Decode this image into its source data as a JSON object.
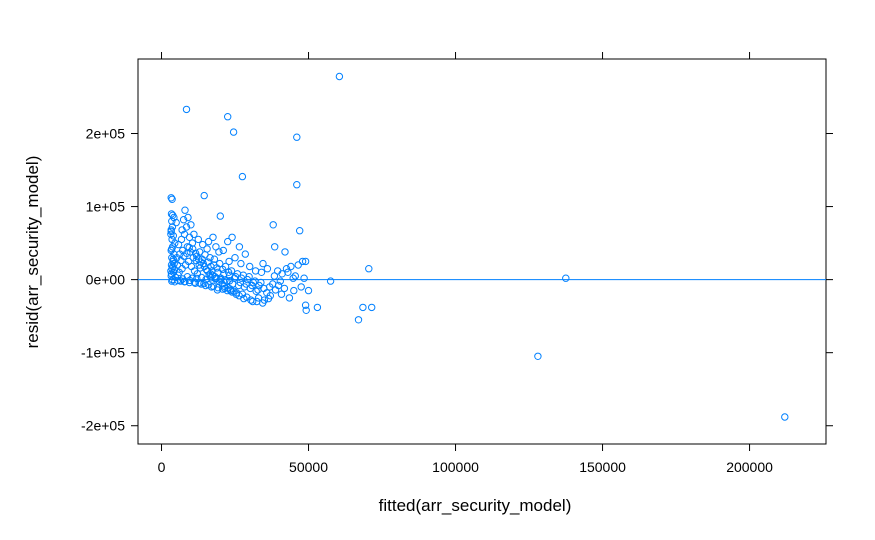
{
  "chart_data": {
    "type": "scatter",
    "title": "",
    "xlabel": "fitted(arr_security_model)",
    "ylabel": "resid(arr_security_model)",
    "xlim": [
      -8000,
      226000
    ],
    "ylim": [
      -225000,
      302000
    ],
    "x_ticks": [
      {
        "value": 0,
        "label": "0"
      },
      {
        "value": 50000,
        "label": "50000"
      },
      {
        "value": 100000,
        "label": "100000"
      },
      {
        "value": 150000,
        "label": "150000"
      },
      {
        "value": 200000,
        "label": "200000"
      }
    ],
    "y_ticks": [
      {
        "value": -200000,
        "label": "-2e+05"
      },
      {
        "value": -100000,
        "label": "-1e+05"
      },
      {
        "value": 0,
        "label": "0e+00"
      },
      {
        "value": 100000,
        "label": "1e+05"
      },
      {
        "value": 200000,
        "label": "2e+05"
      }
    ],
    "reference_line": {
      "y": 0
    },
    "colors": {
      "points": "#0080ff",
      "reference_line": "#0080ff",
      "axes": "#000000"
    },
    "points": [
      [
        60500,
        278000
      ],
      [
        8500,
        233000
      ],
      [
        22500,
        223000
      ],
      [
        24500,
        202000
      ],
      [
        46000,
        195000
      ],
      [
        27500,
        141000
      ],
      [
        46000,
        130000
      ],
      [
        3300,
        112000
      ],
      [
        3600,
        110000
      ],
      [
        14500,
        115000
      ],
      [
        3400,
        90000
      ],
      [
        3800,
        88000
      ],
      [
        4200,
        85000
      ],
      [
        3500,
        80000
      ],
      [
        5000,
        78000
      ],
      [
        3700,
        72000
      ],
      [
        3300,
        66000
      ],
      [
        4000,
        60000
      ],
      [
        3600,
        55000
      ],
      [
        4500,
        50000
      ],
      [
        3800,
        45000
      ],
      [
        3300,
        40000
      ],
      [
        4200,
        35000
      ],
      [
        3500,
        30000
      ],
      [
        3900,
        25000
      ],
      [
        3400,
        20000
      ],
      [
        3600,
        15000
      ],
      [
        4100,
        10000
      ],
      [
        3300,
        5000
      ],
      [
        3700,
        0
      ],
      [
        3500,
        -2000
      ],
      [
        4500,
        -3000
      ],
      [
        3400,
        8000
      ],
      [
        3200,
        62000
      ],
      [
        3300,
        68000
      ],
      [
        3500,
        42000
      ],
      [
        3200,
        12000
      ],
      [
        3800,
        18000
      ],
      [
        4300,
        22000
      ],
      [
        4000,
        28000
      ],
      [
        8000,
        95000
      ],
      [
        9000,
        85000
      ],
      [
        7500,
        82000
      ],
      [
        10000,
        75000
      ],
      [
        8500,
        72000
      ],
      [
        7000,
        68000
      ],
      [
        11000,
        62000
      ],
      [
        9500,
        58000
      ],
      [
        12500,
        55000
      ],
      [
        10500,
        50000
      ],
      [
        14000,
        48000
      ],
      [
        16000,
        52000
      ],
      [
        17500,
        58000
      ],
      [
        18500,
        45000
      ],
      [
        20000,
        87000
      ],
      [
        24000,
        58000
      ],
      [
        22500,
        52000
      ],
      [
        26500,
        45000
      ],
      [
        21000,
        40000
      ],
      [
        19500,
        38000
      ],
      [
        15500,
        42000
      ],
      [
        13000,
        38000
      ],
      [
        12000,
        32000
      ],
      [
        16500,
        30000
      ],
      [
        18000,
        28000
      ],
      [
        23000,
        25000
      ],
      [
        25000,
        30000
      ],
      [
        27000,
        22000
      ],
      [
        28500,
        35000
      ],
      [
        30000,
        18000
      ],
      [
        32000,
        12000
      ],
      [
        34000,
        10000
      ],
      [
        34500,
        22000
      ],
      [
        36000,
        15000
      ],
      [
        38000,
        75000
      ],
      [
        38500,
        45000
      ],
      [
        39500,
        12000
      ],
      [
        41000,
        8000
      ],
      [
        42000,
        38000
      ],
      [
        42500,
        15000
      ],
      [
        44000,
        18000
      ],
      [
        45500,
        5000
      ],
      [
        46500,
        20000
      ],
      [
        47000,
        67000
      ],
      [
        48000,
        25000
      ],
      [
        49000,
        25000
      ],
      [
        45000,
        -15000
      ],
      [
        43500,
        -25000
      ],
      [
        47500,
        -10000
      ],
      [
        48500,
        2000
      ],
      [
        49000,
        -35000
      ],
      [
        49200,
        -42000
      ],
      [
        50000,
        -15000
      ],
      [
        53000,
        -38000
      ],
      [
        57500,
        -2000
      ],
      [
        67000,
        -55000
      ],
      [
        68500,
        -38000
      ],
      [
        70500,
        15000
      ],
      [
        71500,
        -38000
      ],
      [
        128000,
        -105000
      ],
      [
        137500,
        2000
      ],
      [
        212000,
        -188000
      ],
      [
        35000,
        -28000
      ],
      [
        33000,
        -25000
      ],
      [
        37000,
        -22000
      ],
      [
        31000,
        -30000
      ],
      [
        29000,
        -24000
      ],
      [
        27500,
        -20000
      ],
      [
        25500,
        -18000
      ],
      [
        23500,
        -15000
      ],
      [
        21500,
        -12000
      ],
      [
        19000,
        -14000
      ],
      [
        17000,
        -10000
      ],
      [
        15000,
        -8000
      ],
      [
        13500,
        -6000
      ],
      [
        11500,
        -5000
      ],
      [
        9500,
        -4000
      ],
      [
        7800,
        -3000
      ],
      [
        6500,
        -2000
      ],
      [
        5500,
        -1000
      ],
      [
        6000,
        10000
      ],
      [
        7000,
        15000
      ],
      [
        8200,
        20000
      ],
      [
        9200,
        25000
      ],
      [
        10200,
        18000
      ],
      [
        11200,
        12000
      ],
      [
        12200,
        8000
      ],
      [
        13200,
        16000
      ],
      [
        14200,
        22000
      ],
      [
        15200,
        14000
      ],
      [
        16200,
        6000
      ],
      [
        17200,
        12000
      ],
      [
        18200,
        4000
      ],
      [
        19200,
        10000
      ],
      [
        20200,
        2000
      ],
      [
        21200,
        8000
      ],
      [
        22200,
        -2000
      ],
      [
        23200,
        6000
      ],
      [
        24200,
        -6000
      ],
      [
        25200,
        4000
      ],
      [
        26200,
        -8000
      ],
      [
        27200,
        2000
      ],
      [
        28200,
        -10000
      ],
      [
        29200,
        0
      ],
      [
        30200,
        -12000
      ],
      [
        31200,
        -4000
      ],
      [
        32200,
        -16000
      ],
      [
        33200,
        -8000
      ],
      [
        5200,
        30000
      ],
      [
        6200,
        35000
      ],
      [
        7200,
        40000
      ],
      [
        5800,
        48000
      ],
      [
        6800,
        55000
      ],
      [
        7800,
        62000
      ],
      [
        8800,
        45000
      ],
      [
        9800,
        38000
      ],
      [
        10800,
        30000
      ],
      [
        11800,
        26000
      ],
      [
        12800,
        20000
      ],
      [
        13800,
        28000
      ],
      [
        14800,
        34000
      ],
      [
        15800,
        24000
      ],
      [
        16800,
        18000
      ],
      [
        17800,
        20000
      ],
      [
        18800,
        16000
      ],
      [
        19800,
        22000
      ],
      [
        20800,
        14000
      ],
      [
        21800,
        18000
      ],
      [
        22800,
        10000
      ],
      [
        23800,
        12000
      ],
      [
        24800,
        2000
      ],
      [
        25800,
        8000
      ],
      [
        26800,
        -4000
      ],
      [
        27800,
        6000
      ],
      [
        28800,
        -6000
      ],
      [
        29800,
        4000
      ],
      [
        30800,
        -8000
      ],
      [
        31800,
        -2000
      ],
      [
        32800,
        -14000
      ],
      [
        33800,
        -4000
      ],
      [
        34800,
        -12000
      ],
      [
        35800,
        -18000
      ],
      [
        36800,
        -10000
      ],
      [
        37800,
        -6000
      ],
      [
        38800,
        -14000
      ],
      [
        39800,
        -8000
      ],
      [
        40800,
        -20000
      ],
      [
        41800,
        -12000
      ],
      [
        4800,
        3000
      ],
      [
        5600,
        6000
      ],
      [
        6400,
        -1500
      ],
      [
        7200,
        1000
      ],
      [
        8000,
        -2500
      ],
      [
        8800,
        4000
      ],
      [
        9600,
        -1000
      ],
      [
        10400,
        2000
      ],
      [
        11200,
        -3500
      ],
      [
        12000,
        1500
      ],
      [
        12800,
        -4500
      ],
      [
        13600,
        3000
      ],
      [
        14400,
        -5500
      ],
      [
        15200,
        500
      ],
      [
        16000,
        -7000
      ],
      [
        16800,
        2500
      ],
      [
        17600,
        -9000
      ],
      [
        18400,
        1000
      ],
      [
        19200,
        -11000
      ],
      [
        20000,
        0
      ],
      [
        20800,
        -13000
      ],
      [
        21600,
        -500
      ],
      [
        22400,
        -15000
      ],
      [
        23200,
        -1500
      ],
      [
        24000,
        -17000
      ],
      [
        4400,
        14000
      ],
      [
        5400,
        20000
      ],
      [
        6600,
        26000
      ],
      [
        7600,
        32000
      ],
      [
        8600,
        36000
      ],
      [
        9400,
        44000
      ],
      [
        10600,
        42000
      ],
      [
        11600,
        36000
      ],
      [
        12600,
        28000
      ],
      [
        13400,
        24000
      ],
      [
        14600,
        18000
      ],
      [
        15600,
        12000
      ],
      [
        16600,
        8000
      ],
      [
        17400,
        6000
      ],
      [
        18600,
        2000
      ],
      [
        19600,
        -2000
      ],
      [
        20600,
        -6000
      ],
      [
        21400,
        -9000
      ],
      [
        22600,
        -11000
      ],
      [
        23400,
        -13000
      ],
      [
        24600,
        -16000
      ],
      [
        25400,
        -20000
      ],
      [
        26400,
        -22000
      ],
      [
        28000,
        -26000
      ],
      [
        30400,
        -28000
      ],
      [
        32400,
        -30000
      ],
      [
        34400,
        -32000
      ],
      [
        36400,
        -26000
      ],
      [
        38400,
        5000
      ],
      [
        40400,
        -2000
      ],
      [
        43000,
        10000
      ],
      [
        44800,
        2000
      ]
    ]
  }
}
